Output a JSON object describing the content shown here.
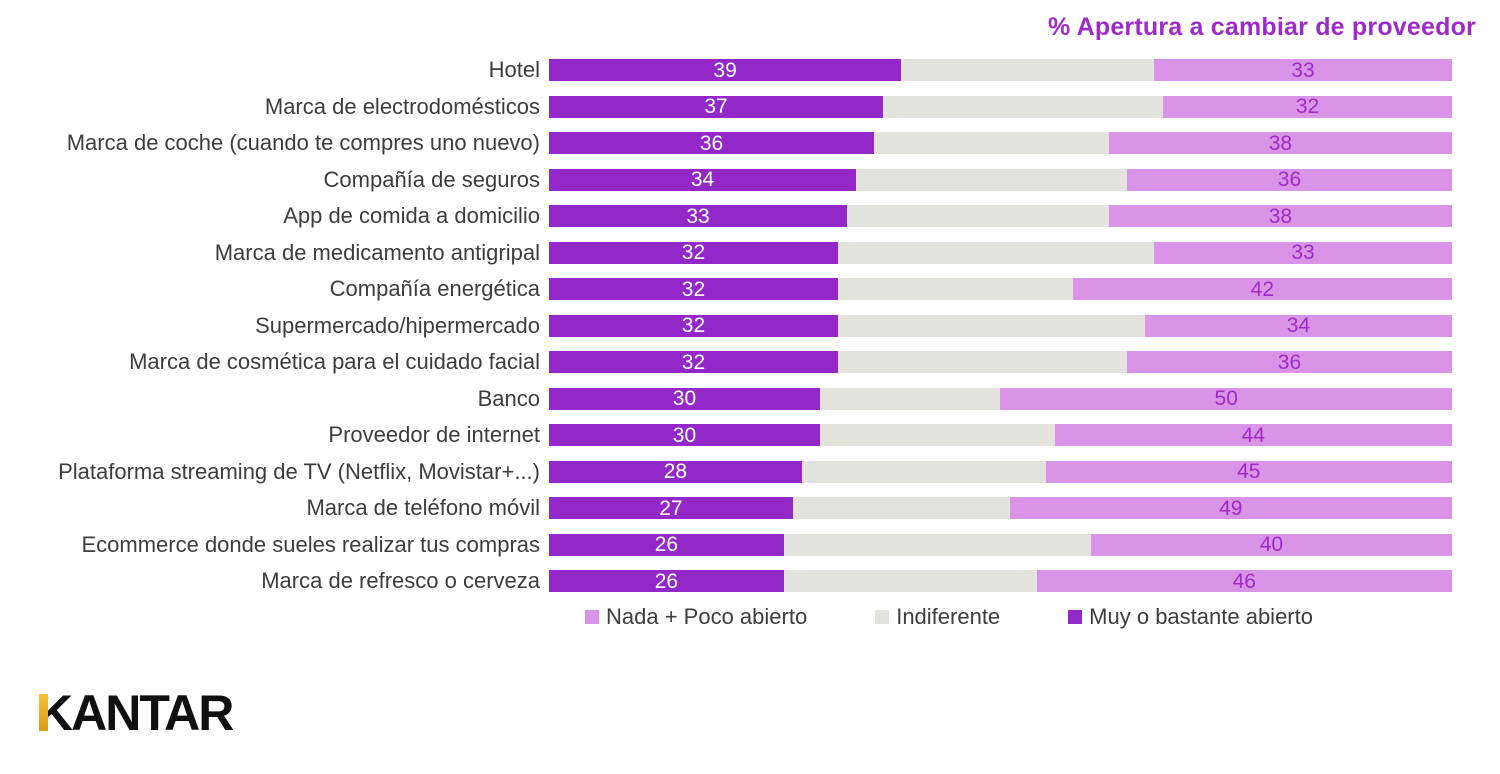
{
  "title": "% Apertura a cambiar de proveedor",
  "colors": {
    "muy_o_bastante_abierto": "#9328C8",
    "indiferente": "#E3E3DD",
    "nada_poco_abierto": "#D994E8",
    "title_text": "#9D2BC7",
    "category_label_text": "#3D3D3D",
    "value_on_dark": "#FFFFFF",
    "value_on_light": "#9D2BC7",
    "logo_text": "#101010",
    "logo_gold_top": "#F6C433",
    "logo_gold_bottom": "#DE9A17"
  },
  "chart_data": {
    "type": "bar",
    "orientation": "horizontal",
    "stacked": true,
    "unit": "%",
    "xlim": [
      0,
      100
    ],
    "grid": false,
    "title": "% Apertura a cambiar de proveedor",
    "categories": [
      "Hotel",
      "Marca de electrodomésticos",
      "Marca de coche (cuando te compres uno nuevo)",
      "Compañía de seguros",
      "App de comida a domicilio",
      "Marca de medicamento antigripal",
      "Compañía energética",
      "Supermercado/hipermercado",
      "Marca de cosmética para el cuidado facial",
      "Banco",
      "Proveedor de internet",
      "Plataforma streaming de TV (Netflix, Movistar+...)",
      "Marca de teléfono móvil",
      "Ecommerce donde sueles realizar tus compras",
      "Marca de refresco o cerveza"
    ],
    "series": [
      {
        "key": "muy-o-bastante-abierto",
        "name": "Muy o bastante abierto",
        "color": "#9328C8",
        "show_value_labels": true,
        "value_label_color": "#FFFFFF",
        "values": [
          39,
          37,
          36,
          34,
          33,
          32,
          32,
          32,
          32,
          30,
          30,
          28,
          27,
          26,
          26
        ]
      },
      {
        "key": "indiferente",
        "name": "Indiferente",
        "color": "#E3E3DD",
        "show_value_labels": false,
        "values": [
          28,
          31,
          26,
          30,
          29,
          35,
          26,
          34,
          32,
          20,
          26,
          27,
          24,
          34,
          28
        ]
      },
      {
        "key": "nada-poco-abierto",
        "name": "Nada + Poco abierto",
        "color": "#D994E8",
        "show_value_labels": true,
        "value_label_color": "#9D2BC7",
        "values": [
          33,
          32,
          38,
          36,
          38,
          33,
          42,
          34,
          36,
          50,
          44,
          45,
          49,
          40,
          46
        ]
      }
    ],
    "legend": {
      "position": "bottom",
      "items": [
        {
          "label": "Nada + Poco abierto",
          "color": "#D994E8"
        },
        {
          "label": "Indiferente",
          "color": "#E3E3DD"
        },
        {
          "label": "Muy o bastante abierto",
          "color": "#9328C8"
        }
      ]
    }
  },
  "logo": {
    "text": "KANTAR"
  }
}
